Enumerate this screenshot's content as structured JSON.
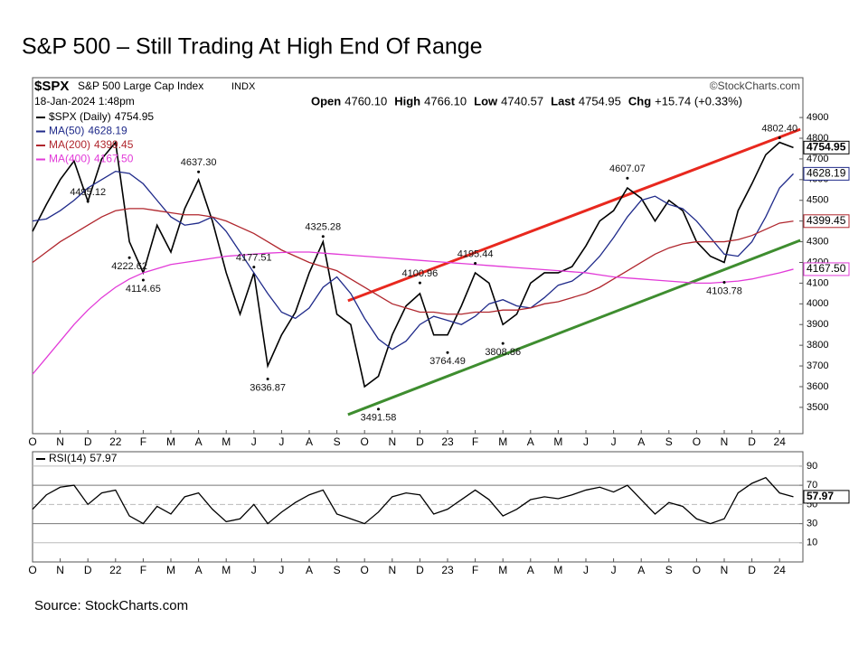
{
  "title": "S&P 500 – Still Trading At High End Of Range",
  "source": "Source: StockCharts.com",
  "chart_data": [
    {
      "type": "line",
      "header": {
        "symbol": "$SPX",
        "name": "S&P 500 Large Cap Index",
        "exchange": "INDX",
        "date": "18-Jan-2024 1:48pm",
        "credit": "©StockCharts.com",
        "quote": [
          {
            "label": "Open",
            "value": "4760.10"
          },
          {
            "label": "High",
            "value": "4766.10"
          },
          {
            "label": "Low",
            "value": "4740.57"
          },
          {
            "label": "Last",
            "value": "4754.95"
          },
          {
            "label": "Chg",
            "value": "+15.74 (+0.33%)"
          }
        ]
      },
      "categories": [
        "O",
        null,
        "N",
        null,
        "D",
        null,
        "22",
        null,
        "F",
        null,
        "M",
        null,
        "A",
        null,
        "M",
        null,
        "J",
        null,
        "J",
        null,
        "A",
        null,
        "S",
        null,
        "O",
        null,
        "N",
        null,
        "D",
        null,
        "23",
        null,
        "F",
        null,
        "M",
        null,
        "A",
        null,
        "M",
        null,
        "J",
        null,
        "J",
        null,
        "A",
        null,
        "S",
        null,
        "O",
        null,
        "N",
        null,
        "D",
        null,
        "24",
        null
      ],
      "series": [
        {
          "name": "$SPX (Daily)",
          "legend_value": "4754.95",
          "color": "#000000",
          "values": [
            4350,
            4480,
            4600,
            4690,
            4495,
            4700,
            4780,
            4300,
            4150,
            4380,
            4250,
            4460,
            4600,
            4400,
            4150,
            3950,
            4150,
            3700,
            3850,
            3960,
            4150,
            4300,
            3950,
            3900,
            3600,
            3650,
            3850,
            3990,
            4050,
            3850,
            3850,
            3990,
            4150,
            4100,
            3900,
            3950,
            4100,
            4150,
            4150,
            4180,
            4280,
            4400,
            4450,
            4560,
            4510,
            4400,
            4500,
            4450,
            4300,
            4230,
            4200,
            4450,
            4580,
            4720,
            4780,
            4754.95
          ]
        },
        {
          "name": "MA(50)",
          "legend_value": "4628.19",
          "color": "#1f2a8a",
          "values": [
            4400,
            4410,
            4450,
            4500,
            4560,
            4600,
            4640,
            4630,
            4580,
            4500,
            4420,
            4380,
            4390,
            4420,
            4350,
            4250,
            4150,
            4050,
            3960,
            3930,
            3980,
            4080,
            4130,
            4050,
            3930,
            3830,
            3780,
            3820,
            3900,
            3940,
            3920,
            3900,
            3940,
            4000,
            4020,
            3990,
            3980,
            4030,
            4090,
            4110,
            4160,
            4230,
            4320,
            4420,
            4500,
            4520,
            4480,
            4460,
            4400,
            4320,
            4240,
            4230,
            4300,
            4420,
            4560,
            4628.19
          ]
        },
        {
          "name": "MA(200)",
          "legend_value": "4399.45",
          "color": "#b0262d",
          "values": [
            4200,
            4250,
            4300,
            4340,
            4380,
            4420,
            4450,
            4460,
            4460,
            4450,
            4440,
            4430,
            4430,
            4420,
            4400,
            4370,
            4340,
            4300,
            4260,
            4230,
            4200,
            4180,
            4160,
            4120,
            4080,
            4040,
            4000,
            3980,
            3960,
            3960,
            3950,
            3950,
            3960,
            3960,
            3970,
            3970,
            3980,
            4000,
            4010,
            4030,
            4050,
            4080,
            4120,
            4160,
            4200,
            4240,
            4270,
            4290,
            4300,
            4300,
            4300,
            4310,
            4330,
            4360,
            4390,
            4399.45
          ]
        },
        {
          "name": "MA(400)",
          "legend_value": "4167.50",
          "color": "#e23ad8",
          "values": [
            3660,
            3740,
            3820,
            3900,
            3970,
            4030,
            4080,
            4120,
            4150,
            4170,
            4190,
            4200,
            4210,
            4220,
            4230,
            4235,
            4240,
            4245,
            4248,
            4250,
            4250,
            4245,
            4240,
            4235,
            4230,
            4225,
            4220,
            4215,
            4210,
            4205,
            4200,
            4195,
            4190,
            4185,
            4180,
            4175,
            4170,
            4165,
            4160,
            4155,
            4150,
            4140,
            4130,
            4125,
            4120,
            4115,
            4110,
            4105,
            4100,
            4100,
            4105,
            4110,
            4120,
            4135,
            4150,
            4167.5
          ]
        }
      ],
      "annotations": [
        {
          "x": 4,
          "value": 4495.12,
          "label": "4495.12"
        },
        {
          "x": 12,
          "value": 4637.3,
          "label": "4637.30"
        },
        {
          "x": 7,
          "value": 4222.62,
          "label": "4222.62"
        },
        {
          "x": 8,
          "value": 4114.65,
          "label": "4114.65"
        },
        {
          "x": 16,
          "value": 4177.51,
          "label": "4177.51"
        },
        {
          "x": 17,
          "value": 3636.87,
          "label": "3636.87"
        },
        {
          "x": 21,
          "value": 4325.28,
          "label": "4325.28"
        },
        {
          "x": 25,
          "value": 3491.58,
          "label": "3491.58"
        },
        {
          "x": 28,
          "value": 4100.96,
          "label": "4100.96"
        },
        {
          "x": 30,
          "value": 3764.49,
          "label": "3764.49"
        },
        {
          "x": 32,
          "value": 4195.44,
          "label": "4195.44"
        },
        {
          "x": 34,
          "value": 3808.86,
          "label": "3808.86"
        },
        {
          "x": 43,
          "value": 4607.07,
          "label": "4607.07"
        },
        {
          "x": 50,
          "value": 4103.78,
          "label": "4103.78"
        },
        {
          "x": 54,
          "value": 4802.4,
          "label": "4802.40"
        }
      ],
      "trendlines": [
        {
          "color": "#e8281e",
          "points": [
            [
              22.8,
              4015
            ],
            [
              55.5,
              4843
            ]
          ]
        },
        {
          "color": "#3e8d2f",
          "points": [
            [
              22.8,
              3465
            ],
            [
              55.5,
              4307
            ]
          ]
        }
      ],
      "ylim": [
        3373,
        4944
      ],
      "yticks": [
        3500,
        3600,
        3700,
        3800,
        3900,
        4000,
        4100,
        4200,
        4300,
        4400,
        4500,
        4600,
        4700,
        4800,
        4900
      ]
    },
    {
      "type": "line",
      "categories": [
        "O",
        null,
        "N",
        null,
        "D",
        null,
        "22",
        null,
        "F",
        null,
        "M",
        null,
        "A",
        null,
        "M",
        null,
        "J",
        null,
        "J",
        null,
        "A",
        null,
        "S",
        null,
        "O",
        null,
        "N",
        null,
        "D",
        null,
        "23",
        null,
        "F",
        null,
        "M",
        null,
        "A",
        null,
        "M",
        null,
        "J",
        null,
        "J",
        null,
        "A",
        null,
        "S",
        null,
        "O",
        null,
        "N",
        null,
        "D",
        null,
        "24",
        null
      ],
      "series": [
        {
          "name": "RSI(14)",
          "legend_value": "57.97",
          "color": "#000000",
          "values": [
            45,
            60,
            68,
            70,
            50,
            62,
            65,
            38,
            30,
            48,
            40,
            58,
            62,
            45,
            32,
            35,
            50,
            30,
            42,
            52,
            60,
            65,
            40,
            35,
            30,
            42,
            58,
            62,
            60,
            40,
            45,
            55,
            65,
            55,
            38,
            45,
            55,
            58,
            56,
            60,
            65,
            68,
            63,
            70,
            55,
            40,
            52,
            48,
            35,
            30,
            35,
            62,
            72,
            78,
            62,
            57.97
          ]
        }
      ],
      "ylim": [
        -10,
        105
      ],
      "yticks": [
        10,
        30,
        50,
        70,
        90
      ]
    }
  ]
}
